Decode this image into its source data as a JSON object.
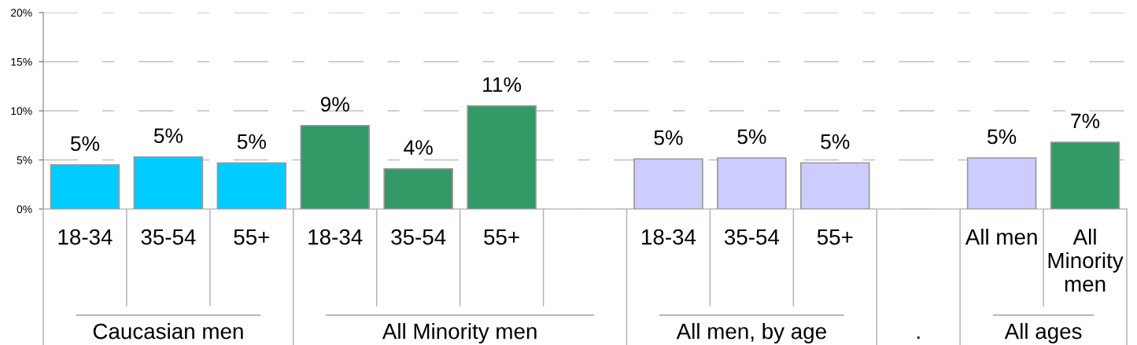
{
  "chart_data": {
    "type": "bar",
    "categories": [
      "18-34",
      "35-54",
      "55+",
      "18-34",
      "35-54",
      "55+",
      null,
      "18-34",
      "35-54",
      "55+",
      null,
      "All men",
      "All Minority men"
    ],
    "values": [
      4.5,
      5.3,
      4.7,
      8.5,
      4.1,
      10.5,
      null,
      5.1,
      5.2,
      4.7,
      null,
      5.2,
      6.8
    ],
    "colors": [
      "#00ccff",
      "#00ccff",
      "#00ccff",
      "#339966",
      "#339966",
      "#339966",
      null,
      "#ccccff",
      "#ccccff",
      "#ccccff",
      null,
      "#ccccff",
      "#339966"
    ],
    "value_labels": [
      "5%",
      "5%",
      "5%",
      "9%",
      "4%",
      "11%",
      null,
      "5%",
      "5%",
      "5%",
      null,
      "5%",
      "7%"
    ],
    "ylim": [
      0,
      20
    ],
    "yticks": [
      {
        "value": 0,
        "label": "0%"
      },
      {
        "value": 5,
        "label": "5%"
      },
      {
        "value": 10,
        "label": "10%"
      },
      {
        "value": 15,
        "label": "15%"
      },
      {
        "value": 20,
        "label": "20%"
      }
    ],
    "grid": "y",
    "annotations": [
      "Caucasian men",
      "All Minority men",
      "All men, by age",
      ".",
      "All ages"
    ]
  }
}
